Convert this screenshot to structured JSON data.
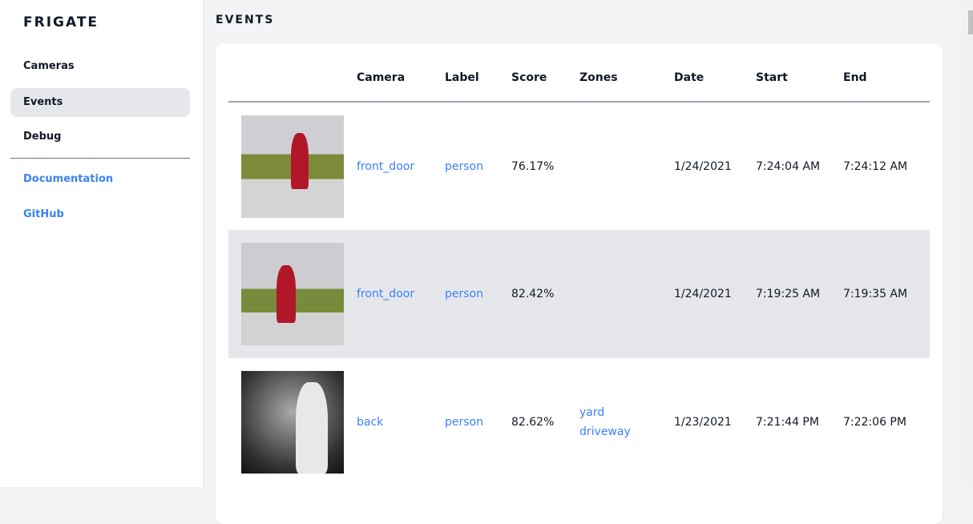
{
  "app": {
    "title": "FRIGATE"
  },
  "sidebar": {
    "items": [
      {
        "label": "Cameras"
      },
      {
        "label": "Events"
      },
      {
        "label": "Debug"
      }
    ],
    "links": [
      {
        "label": "Documentation"
      },
      {
        "label": "GitHub"
      }
    ]
  },
  "page": {
    "title": "EVENTS"
  },
  "table": {
    "headers": [
      "",
      "Camera",
      "Label",
      "Score",
      "Zones",
      "Date",
      "Start",
      "End"
    ],
    "rows": [
      {
        "camera": "front_door",
        "label": "person",
        "score": "76.17%",
        "zones": [
          "",
          ""
        ],
        "date": "1/24/2021",
        "start": "7:24:04 AM",
        "end": "7:24:12 AM"
      },
      {
        "camera": "front_door",
        "label": "person",
        "score": "82.42%",
        "zones": [
          "",
          ""
        ],
        "date": "1/24/2021",
        "start": "7:19:25 AM",
        "end": "7:19:35 AM"
      },
      {
        "camera": "back",
        "label": "person",
        "score": "82.62%",
        "zones": [
          "yard",
          "driveway"
        ],
        "date": "1/23/2021",
        "start": "7:21:44 PM",
        "end": "7:22:06 PM"
      }
    ]
  },
  "colors": {
    "accent": "#3b82f6",
    "active_bg": "#e5e7eb"
  }
}
